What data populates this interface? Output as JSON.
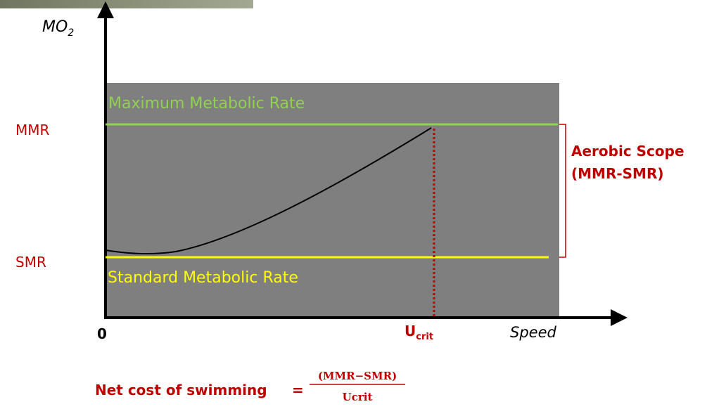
{
  "axis": {
    "y_label": "MO",
    "y_label_sub": "2",
    "x_label": "Speed",
    "origin": "0"
  },
  "levels": {
    "mmr": "MMR",
    "smr": "SMR",
    "mmr_name": "Maximum Metabolic Rate",
    "smr_name": "Standard Metabolic Rate"
  },
  "ucrit": {
    "main": "U",
    "sub": "crit"
  },
  "scope": {
    "line1": "Aerobic Scope",
    "line2": "(MMR-SMR)"
  },
  "formula": {
    "label": "Net cost of swimming",
    "equals": "=",
    "numerator": "(MMR−SMR)",
    "denominator": "Ucrit"
  }
}
